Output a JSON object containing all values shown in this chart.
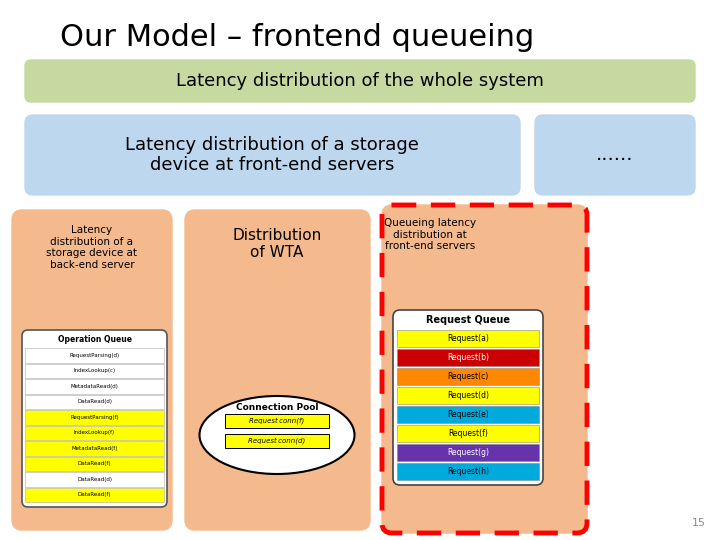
{
  "title": "Our Model – frontend queueing",
  "title_fontsize": 22,
  "bg_color": "#ffffff",
  "green_box": {
    "text": "Latency distribution of the whole system",
    "color": "#c6d9a0",
    "fontsize": 13
  },
  "blue_row": {
    "left_text": "Latency distribution of a storage\ndevice at front-end servers",
    "right_text": "......",
    "color": "#bdd7ee",
    "fontsize": 13
  },
  "bottom_boxes": [
    {
      "label": "Latency\ndistribution of a\nstorage device at\nback-end server",
      "color": "#f4b98c",
      "fontsize": 7.5
    },
    {
      "label": "Distribution\nof WTA",
      "color": "#f4b98c",
      "fontsize": 11
    },
    {
      "label": "Queueing latency\ndistribution at\nfront-end servers",
      "color": "#f4b98c",
      "fontsize": 7.5
    }
  ],
  "op_queue_items": [
    {
      "text": "RequestParsing(d)",
      "color": "#ffffff"
    },
    {
      "text": "IndexLookup(c)",
      "color": "#ffffff"
    },
    {
      "text": "MetadataRead(d)",
      "color": "#ffffff"
    },
    {
      "text": "DataRead(d)",
      "color": "#ffffff"
    },
    {
      "text": "RequestParsing(f)",
      "color": "#ffff00"
    },
    {
      "text": "IndexLookup(f)",
      "color": "#ffff00"
    },
    {
      "text": "MetadataRead(f)",
      "color": "#ffff00"
    },
    {
      "text": "DataRead(f)",
      "color": "#ffff00"
    },
    {
      "text": "DataRead(d)",
      "color": "#ffffff"
    },
    {
      "text": "DataRead(f)",
      "color": "#ffff00"
    }
  ],
  "request_queue_items": [
    {
      "text": "Request(a)",
      "color": "#ffff00"
    },
    {
      "text": "Request(b)",
      "color": "#cc0000"
    },
    {
      "text": "Request(c)",
      "color": "#ff8800"
    },
    {
      "text": "Request(d)",
      "color": "#ffff00"
    },
    {
      "text": "Request(e)",
      "color": "#00aadd"
    },
    {
      "text": "Request(f)",
      "color": "#ffff00"
    },
    {
      "text": "Request(g)",
      "color": "#6633aa"
    },
    {
      "text": "Request(h)",
      "color": "#00aadd"
    }
  ],
  "conn_pool_items": [
    {
      "text": "Request conn(f)",
      "color": "#ffff00"
    },
    {
      "text": "Request conn(d)",
      "color": "#ffff00"
    }
  ],
  "slide_number": "15"
}
